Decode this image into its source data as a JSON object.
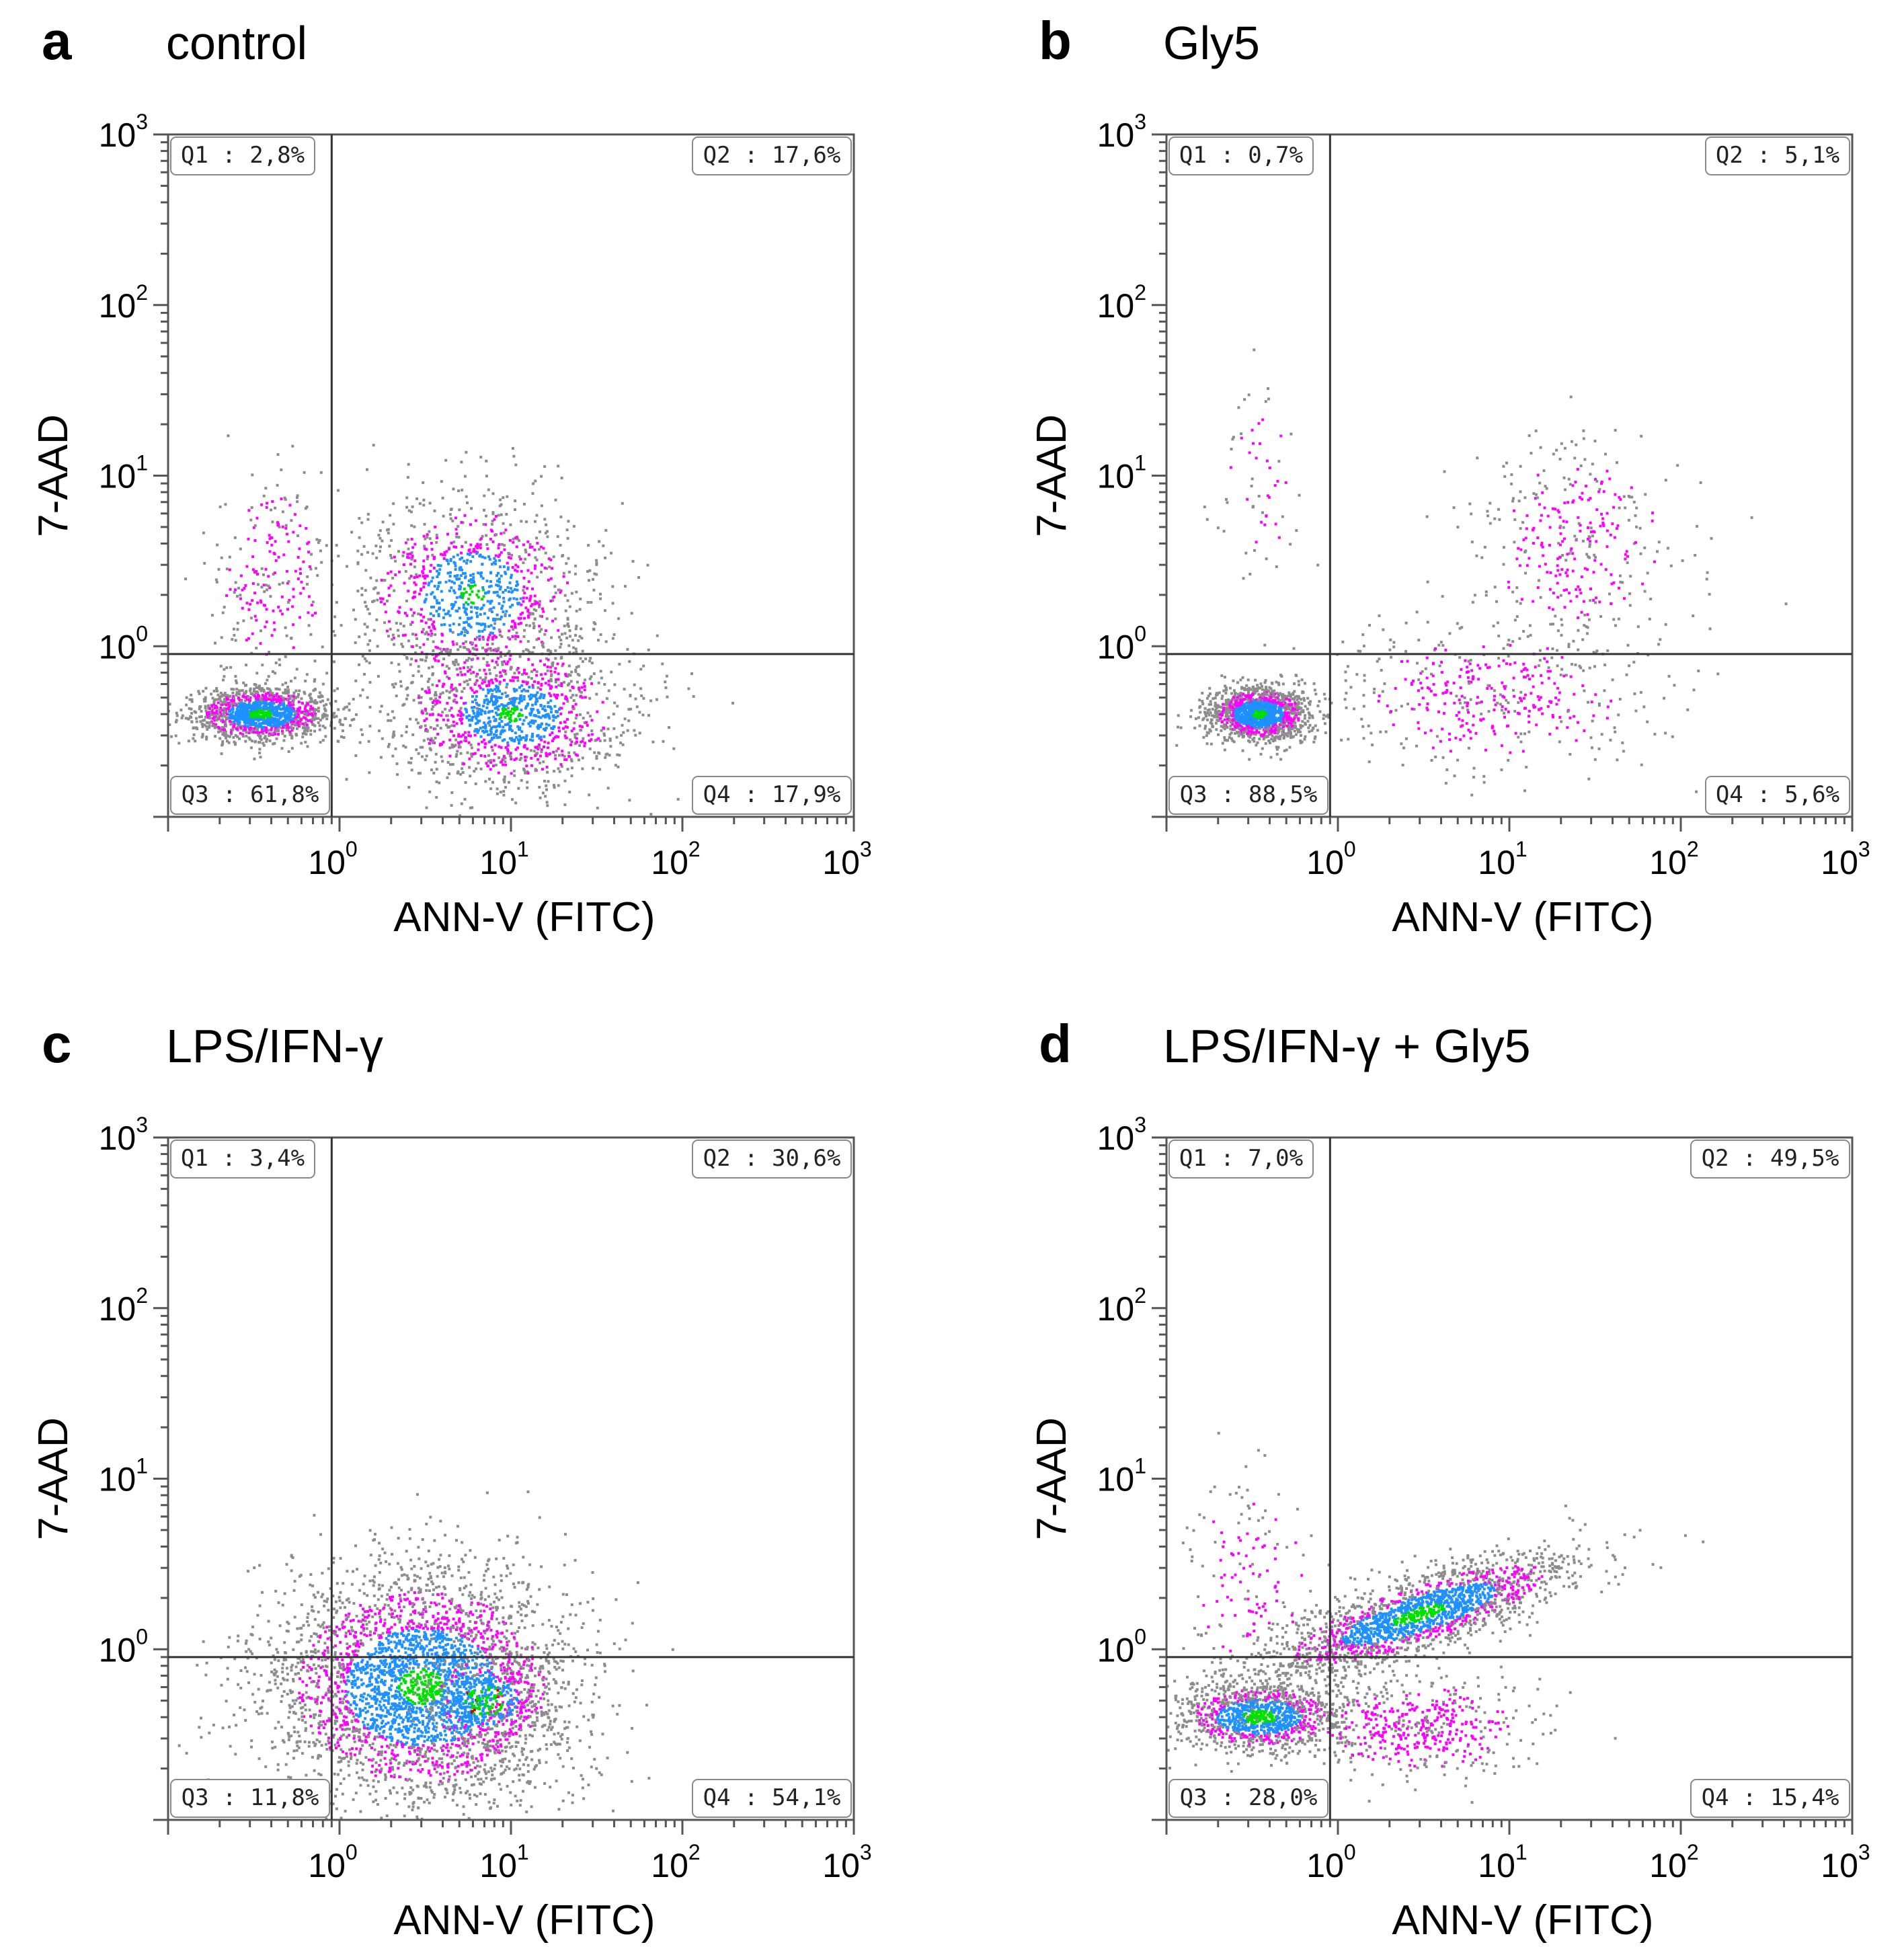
{
  "figure": {
    "panels": [
      {
        "letter": "a",
        "title": "control"
      },
      {
        "letter": "b",
        "title": "Gly5"
      },
      {
        "letter": "c",
        "title": "LPS/IFN-γ"
      },
      {
        "letter": "d",
        "title": "LPS/IFN-γ + Gly5"
      }
    ]
  },
  "chart_data": [
    {
      "type": "scatter",
      "title": "control",
      "xlabel": "ANN-V (FITC)",
      "ylabel": "7-AAD",
      "x_scale": "log",
      "y_scale": "log",
      "xlim": [
        0.1,
        1000
      ],
      "ylim": [
        0.1,
        1000
      ],
      "x_ticks": [
        "10^0",
        "10^1",
        "10^2",
        "10^3"
      ],
      "y_ticks": [
        "10^0",
        "10^1",
        "10^2",
        "10^3"
      ],
      "gate": {
        "x": 0.9,
        "y": 0.9
      },
      "quadrants": [
        {
          "label": "Q1",
          "value": "2,8%"
        },
        {
          "label": "Q2",
          "value": "17,6%"
        },
        {
          "label": "Q3",
          "value": "61,8%"
        },
        {
          "label": "Q4",
          "value": "17,9%"
        }
      ],
      "populations": [
        {
          "x": 0.35,
          "y": 0.4,
          "sx": 0.2,
          "sy": 0.08,
          "n": 1400,
          "core": 0.35
        },
        {
          "x": 0.4,
          "y": 2.5,
          "sx": 0.18,
          "sy": 0.3,
          "n": 220,
          "core": 0.0
        },
        {
          "x": 6.0,
          "y": 2.0,
          "sx": 0.35,
          "sy": 0.3,
          "n": 1100,
          "core": 0.2
        },
        {
          "x": 10.0,
          "y": 0.4,
          "sx": 0.35,
          "sy": 0.22,
          "n": 1300,
          "core": 0.2
        }
      ],
      "density_colors": [
        "#8c8c8c",
        "#ff00ff",
        "#1e90ff",
        "#00e000",
        "#d40000"
      ]
    },
    {
      "type": "scatter",
      "title": "Gly5",
      "xlabel": "ANN-V (FITC)",
      "ylabel": "7-AAD",
      "x_scale": "log",
      "y_scale": "log",
      "xlim": [
        0.1,
        1000
      ],
      "ylim": [
        0.1,
        1000
      ],
      "x_ticks": [
        "10^0",
        "10^1",
        "10^2",
        "10^3"
      ],
      "y_ticks": [
        "10^0",
        "10^1",
        "10^2",
        "10^3"
      ],
      "gate": {
        "x": 0.9,
        "y": 0.9
      },
      "quadrants": [
        {
          "label": "Q1",
          "value": "0,7%"
        },
        {
          "label": "Q2",
          "value": "5,1%"
        },
        {
          "label": "Q3",
          "value": "88,5%"
        },
        {
          "label": "Q4",
          "value": "5,6%"
        }
      ],
      "populations": [
        {
          "x": 0.35,
          "y": 0.4,
          "sx": 0.15,
          "sy": 0.08,
          "n": 1500,
          "core": 0.3
        },
        {
          "x": 0.35,
          "y": 8.0,
          "sx": 0.12,
          "sy": 0.3,
          "n": 60,
          "core": 0.0
        },
        {
          "x": 25.0,
          "y": 4.0,
          "sx": 0.3,
          "sy": 0.3,
          "n": 350,
          "core": 0.0
        },
        {
          "x": 8.0,
          "y": 0.5,
          "sx": 0.45,
          "sy": 0.22,
          "n": 450,
          "core": 0.0
        }
      ],
      "density_colors": [
        "#8c8c8c",
        "#ff00ff",
        "#1e90ff",
        "#00e000",
        "#d40000"
      ]
    },
    {
      "type": "scatter",
      "title": "LPS/IFN-γ",
      "xlabel": "ANN-V (FITC)",
      "ylabel": "7-AAD",
      "x_scale": "log",
      "y_scale": "log",
      "xlim": [
        0.1,
        1000
      ],
      "ylim": [
        0.1,
        1000
      ],
      "x_ticks": [
        "10^0",
        "10^1",
        "10^2",
        "10^3"
      ],
      "y_ticks": [
        "10^0",
        "10^1",
        "10^2",
        "10^3"
      ],
      "gate": {
        "x": 0.9,
        "y": 0.9
      },
      "quadrants": [
        {
          "label": "Q1",
          "value": "3,4%"
        },
        {
          "label": "Q2",
          "value": "30,6%"
        },
        {
          "label": "Q3",
          "value": "11,8%"
        },
        {
          "label": "Q4",
          "value": "54,1%"
        }
      ],
      "populations": [
        {
          "x": 3.0,
          "y": 0.6,
          "sx": 0.45,
          "sy": 0.35,
          "n": 3600,
          "core": 0.3
        },
        {
          "x": 7.0,
          "y": 0.5,
          "sx": 0.2,
          "sy": 0.15,
          "n": 450,
          "core": 0.6
        }
      ],
      "density_colors": [
        "#8c8c8c",
        "#ff00ff",
        "#1e90ff",
        "#00e000",
        "#d40000"
      ]
    },
    {
      "type": "scatter",
      "title": "LPS/IFN-γ + Gly5",
      "xlabel": "ANN-V (FITC)",
      "ylabel": "7-AAD",
      "x_scale": "log",
      "y_scale": "log",
      "xlim": [
        0.1,
        1000
      ],
      "ylim": [
        0.1,
        1000
      ],
      "x_ticks": [
        "10^0",
        "10^1",
        "10^2",
        "10^3"
      ],
      "y_ticks": [
        "10^0",
        "10^1",
        "10^2",
        "10^3"
      ],
      "gate": {
        "x": 0.9,
        "y": 0.9
      },
      "quadrants": [
        {
          "label": "Q1",
          "value": "7,0%"
        },
        {
          "label": "Q2",
          "value": "49,5%"
        },
        {
          "label": "Q3",
          "value": "28,0%"
        },
        {
          "label": "Q4",
          "value": "15,4%"
        }
      ],
      "populations": [
        {
          "x": 0.35,
          "y": 0.4,
          "sx": 0.25,
          "sy": 0.1,
          "n": 1200,
          "core": 0.4
        },
        {
          "x": 3.0,
          "y": 1.6,
          "sx": 0.45,
          "sy": 0.18,
          "n": 2000,
          "core": 0.35,
          "corr": 0.8
        },
        {
          "x": 3.0,
          "y": 0.35,
          "sx": 0.35,
          "sy": 0.15,
          "n": 500,
          "core": 0.0
        },
        {
          "x": 0.3,
          "y": 2.5,
          "sx": 0.2,
          "sy": 0.3,
          "n": 150,
          "core": 0.0
        }
      ],
      "density_colors": [
        "#8c8c8c",
        "#ff00ff",
        "#1e90ff",
        "#00e000",
        "#d40000"
      ]
    }
  ]
}
